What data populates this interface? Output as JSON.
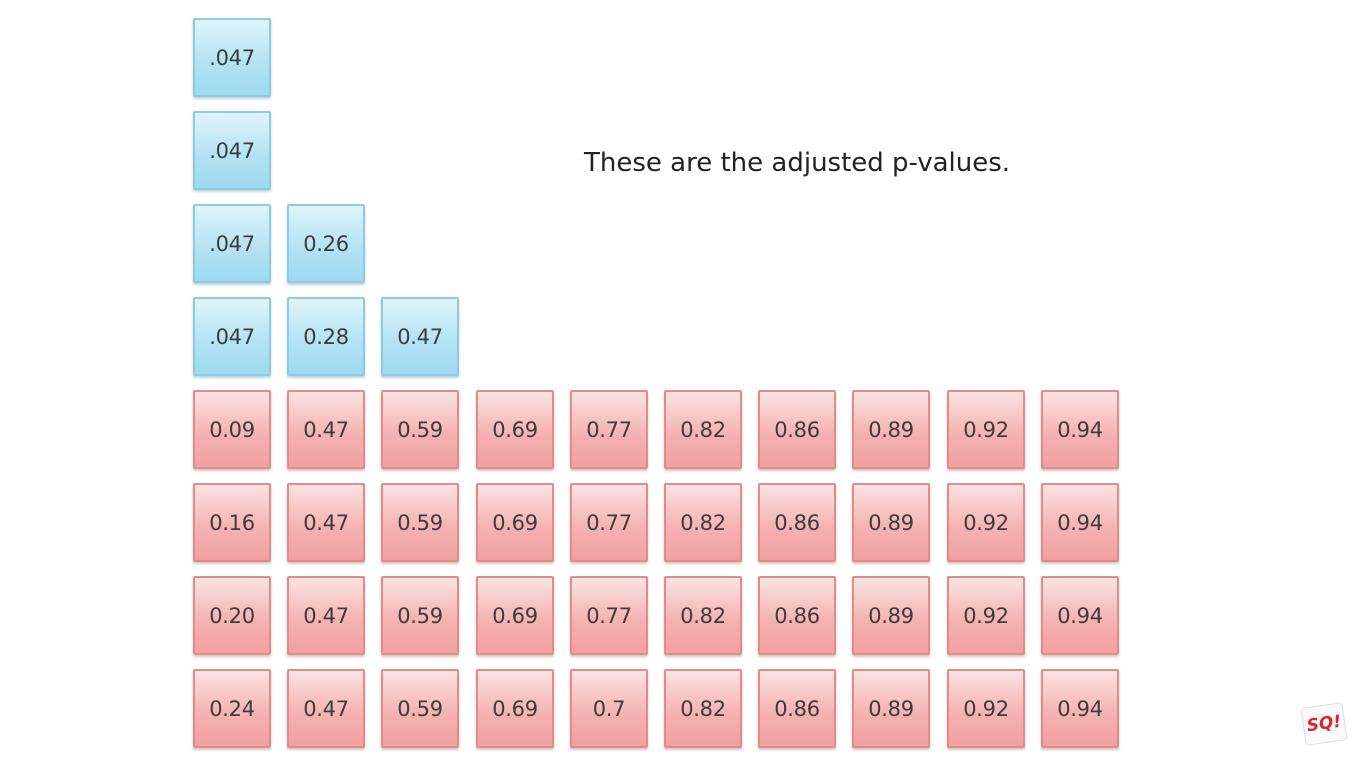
{
  "caption": "These are the adjusted p-values.",
  "colors": {
    "significant": "#b4e3f4",
    "not_significant": "#f5b3b3"
  },
  "columns": [
    {
      "blue": [
        ".047",
        ".047",
        ".047",
        ".047"
      ],
      "red": [
        "0.09",
        "0.16",
        "0.20",
        "0.24"
      ]
    },
    {
      "blue": [
        "0.26",
        "0.28"
      ],
      "red": [
        "0.47",
        "0.47",
        "0.47",
        "0.47"
      ]
    },
    {
      "blue": [
        "0.47"
      ],
      "red": [
        "0.59",
        "0.59",
        "0.59",
        "0.59"
      ]
    },
    {
      "blue": [],
      "red": [
        "0.69",
        "0.69",
        "0.69",
        "0.69"
      ]
    },
    {
      "blue": [],
      "red": [
        "0.77",
        "0.77",
        "0.77",
        "0.7"
      ]
    },
    {
      "blue": [],
      "red": [
        "0.82",
        "0.82",
        "0.82",
        "0.82"
      ]
    },
    {
      "blue": [],
      "red": [
        "0.86",
        "0.86",
        "0.86",
        "0.86"
      ]
    },
    {
      "blue": [],
      "red": [
        "0.89",
        "0.89",
        "0.89",
        "0.89"
      ]
    },
    {
      "blue": [],
      "red": [
        "0.92",
        "0.92",
        "0.92",
        "0.92"
      ]
    },
    {
      "blue": [],
      "red": [
        "0.94",
        "0.94",
        "0.94",
        "0.94"
      ]
    }
  ],
  "logo": {
    "icon": "sq-logo-icon",
    "text": "SQ!"
  }
}
